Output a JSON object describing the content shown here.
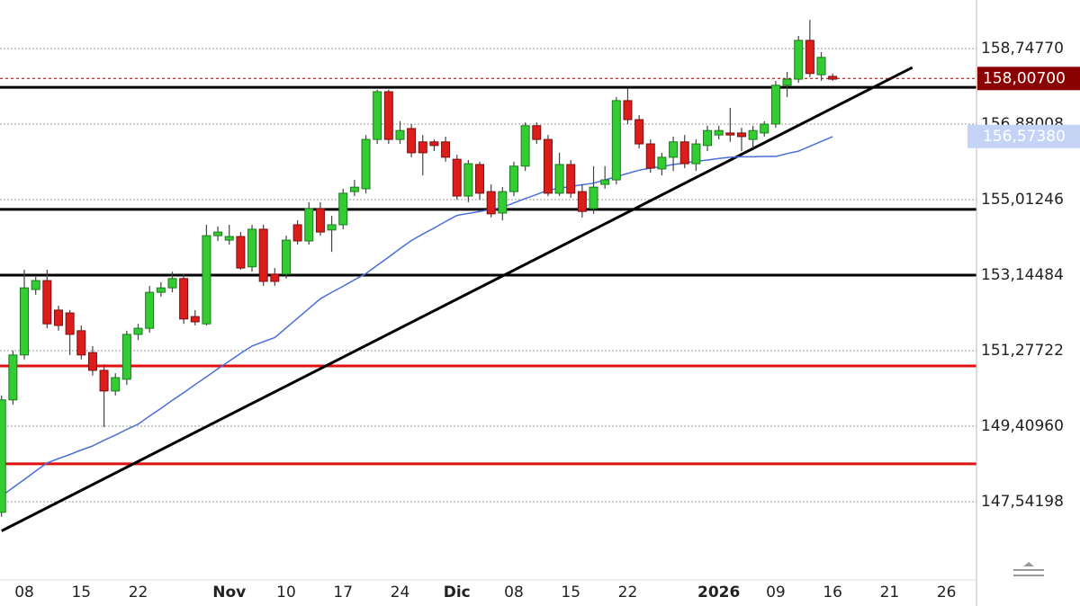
{
  "chart_data": {
    "type": "candlestick",
    "categories": [
      null,
      null,
      "08",
      null,
      null,
      null,
      null,
      "15",
      null,
      null,
      null,
      null,
      "22",
      null,
      null,
      null,
      null,
      null,
      null,
      null,
      "Nov",
      null,
      null,
      null,
      null,
      "10",
      null,
      null,
      null,
      null,
      "17",
      null,
      null,
      null,
      null,
      "24",
      null,
      null,
      null,
      null,
      "Dic",
      null,
      null,
      null,
      null,
      "08",
      null,
      null,
      null,
      null,
      "15",
      null,
      null,
      null,
      null,
      "22",
      null,
      null,
      null,
      null,
      null,
      null,
      null,
      "2026",
      null,
      null,
      null,
      null,
      "09",
      null,
      null,
      null,
      null,
      "16",
      null,
      null,
      null,
      null,
      "21",
      null,
      null,
      null,
      null,
      "26"
    ],
    "open": [
      147.28,
      150.06,
      151.17,
      152.79,
      153.01,
      152.28,
      152.21,
      151.77,
      151.23,
      150.79,
      150.28,
      150.57,
      151.68,
      151.83,
      152.72,
      152.83,
      153.06,
      152.12,
      151.94,
      154.12,
      154.01,
      154.1,
      153.35,
      154.28,
      153.17,
      153.17,
      154.39,
      153.99,
      154.79,
      154.26,
      154.39,
      155.21,
      155.28,
      156.5,
      157.68,
      156.5,
      156.77,
      156.44,
      156.44,
      156.44,
      156.01,
      155.1,
      155.88,
      155.21,
      154.68,
      155.21,
      155.84,
      156.84,
      156.5,
      155.17,
      155.88,
      155.21,
      154.79,
      155.39,
      155.5,
      157.46,
      156.99,
      156.39,
      155.77,
      156.06,
      156.44,
      155.9,
      156.35,
      156.61,
      156.66,
      156.66,
      156.5,
      156.66,
      156.88,
      157.84,
      157.99,
      158.95,
      158.1,
      158.06,
      null,
      null,
      null,
      null,
      null,
      null,
      null,
      null,
      null,
      null
    ],
    "high": [
      150.17,
      151.28,
      153.28,
      153.1,
      153.28,
      152.39,
      152.28,
      151.9,
      151.39,
      150.94,
      150.72,
      151.77,
      151.94,
      152.88,
      152.97,
      153.23,
      153.17,
      152.28,
      154.39,
      154.35,
      154.39,
      154.21,
      154.39,
      154.39,
      153.32,
      154.12,
      154.5,
      154.95,
      154.95,
      154.61,
      155.28,
      155.5,
      156.61,
      157.73,
      157.73,
      156.95,
      156.88,
      156.61,
      156.5,
      156.57,
      156.12,
      155.99,
      155.95,
      155.39,
      155.32,
      155.95,
      156.92,
      156.92,
      156.61,
      156.17,
      155.99,
      155.39,
      155.84,
      155.84,
      157.55,
      157.77,
      157.1,
      156.5,
      156.17,
      156.57,
      156.61,
      156.5,
      156.84,
      156.84,
      157.28,
      156.79,
      156.84,
      156.95,
      157.95,
      158.17,
      159.06,
      159.46,
      158.66,
      158.13,
      null,
      null,
      null,
      null,
      null,
      null,
      null,
      null,
      null,
      null
    ],
    "low": [
      147.17,
      149.94,
      151.06,
      152.66,
      151.83,
      151.77,
      151.17,
      151.06,
      150.66,
      149.39,
      150.17,
      150.43,
      151.54,
      151.72,
      152.61,
      152.72,
      151.94,
      151.9,
      151.9,
      153.99,
      153.9,
      153.28,
      153.23,
      152.88,
      152.88,
      153.06,
      153.9,
      153.9,
      154.12,
      153.72,
      154.28,
      155.1,
      155.17,
      156.39,
      156.39,
      156.39,
      156.06,
      155.61,
      156.21,
      155.95,
      155.01,
      154.95,
      155.01,
      154.57,
      154.5,
      155.1,
      155.72,
      156.39,
      155.1,
      155.1,
      155.06,
      154.57,
      154.66,
      155.28,
      155.39,
      156.88,
      156.28,
      155.68,
      155.61,
      155.72,
      155.79,
      155.72,
      156.21,
      156.5,
      156.44,
      156.21,
      156.28,
      156.57,
      156.79,
      157.55,
      157.9,
      158.04,
      157.95,
      157.95,
      null,
      null,
      null,
      null,
      null,
      null,
      null,
      null,
      null,
      null
    ],
    "close": [
      150.06,
      151.17,
      152.83,
      153.01,
      151.94,
      151.9,
      151.68,
      151.17,
      150.79,
      150.28,
      150.61,
      151.68,
      151.83,
      152.72,
      152.83,
      153.06,
      152.06,
      151.99,
      154.12,
      154.21,
      154.1,
      153.32,
      154.28,
      152.99,
      152.99,
      154.01,
      153.99,
      154.79,
      154.21,
      154.39,
      155.17,
      155.32,
      156.5,
      157.68,
      156.5,
      156.72,
      156.17,
      156.17,
      156.35,
      156.06,
      155.1,
      155.9,
      155.17,
      154.66,
      155.21,
      155.84,
      156.84,
      156.5,
      155.17,
      155.88,
      155.17,
      154.72,
      155.32,
      155.5,
      157.46,
      156.99,
      156.39,
      155.79,
      156.06,
      156.44,
      155.9,
      156.39,
      156.72,
      156.72,
      156.61,
      156.57,
      156.72,
      156.88,
      157.84,
      157.99,
      158.95,
      158.13,
      158.53,
      157.99,
      null,
      null,
      null,
      null,
      null,
      null,
      null,
      null,
      null,
      null
    ],
    "up_color": "#33cc33",
    "down_color": "#dd1c1c",
    "moving_average": {
      "color": "#4a6fd8",
      "values": [
        147.68,
        147.89,
        148.09,
        148.3,
        148.5,
        148.61,
        148.71,
        148.82,
        148.92,
        149.06,
        149.19,
        149.33,
        149.46,
        149.66,
        149.85,
        150.05,
        150.24,
        150.44,
        150.63,
        150.83,
        151.02,
        151.21,
        151.39,
        151.5,
        151.6,
        151.84,
        152.08,
        152.32,
        152.56,
        152.72,
        152.87,
        153.03,
        153.18,
        153.39,
        153.59,
        153.8,
        154.0,
        154.16,
        154.31,
        154.47,
        154.62,
        154.67,
        154.72,
        154.77,
        154.82,
        154.93,
        155.04,
        155.14,
        155.25,
        155.29,
        155.34,
        155.38,
        155.42,
        155.5,
        155.58,
        155.66,
        155.74,
        155.79,
        155.83,
        155.88,
        155.92,
        155.96,
        155.99,
        156.03,
        156.06,
        156.07,
        156.07,
        156.08,
        156.08,
        156.15,
        156.21,
        156.33,
        156.45,
        156.57,
        null,
        null,
        null,
        null,
        null,
        null,
        null,
        null,
        null,
        null
      ]
    },
    "levels": [
      {
        "value": 157.79,
        "color": "#000000"
      },
      {
        "value": 154.77,
        "color": "#000000"
      },
      {
        "value": 153.145,
        "color": "#000000"
      },
      {
        "value": 150.9,
        "color": "#e01010"
      },
      {
        "value": 148.48,
        "color": "#e01010"
      }
    ],
    "trendline": {
      "color": "#000000",
      "start": {
        "index": 0,
        "value": 146.82
      },
      "end": {
        "index": 80,
        "value": 158.28
      }
    },
    "last_price": {
      "value": 158.007,
      "label": "158,00700",
      "color": "#8b0000"
    },
    "ma_price": {
      "value": 156.5738,
      "label": "156,57380",
      "color": "#c5d3f7"
    },
    "ylim": [
      145.608,
      159.948
    ],
    "yticks": [
      {
        "value": 158.7477,
        "label": "158,74770"
      },
      {
        "value": 156.88008,
        "label": "156,88008"
      },
      {
        "value": 155.01246,
        "label": "155,01246"
      },
      {
        "value": 153.14484,
        "label": "153,14484"
      },
      {
        "value": 151.27722,
        "label": "151,27722"
      },
      {
        "value": 149.4096,
        "label": "149,40960"
      },
      {
        "value": 147.54198,
        "label": "147,54198"
      }
    ],
    "grid": true
  }
}
